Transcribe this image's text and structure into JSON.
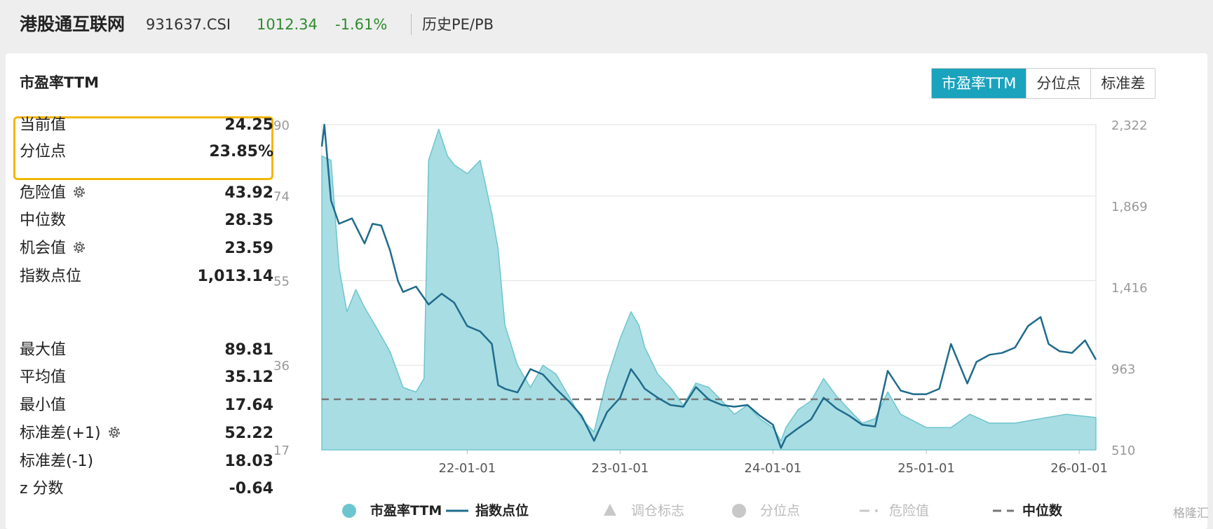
{
  "header": {
    "name": "港股通互联网",
    "code": "931637.CSI",
    "price": "1012.34",
    "change": "-1.61%",
    "history_link": "历史PE/PB"
  },
  "panel": {
    "title": "市盈率TTM",
    "buttons": [
      {
        "label": "市盈率TTM",
        "active": true
      },
      {
        "label": "分位点",
        "active": false
      },
      {
        "label": "标准差",
        "active": false
      }
    ]
  },
  "stats": {
    "current_label": "当前值",
    "current_value": "24.25",
    "percentile_label": "分位点",
    "percentile_value": "23.85%",
    "danger_label": "危险值",
    "danger_value": "43.92",
    "median_label": "中位数",
    "median_value": "28.35",
    "opportunity_label": "机会值",
    "opportunity_value": "23.59",
    "index_label": "指数点位",
    "index_value": "1,013.14",
    "max_label": "最大值",
    "max_value": "89.81",
    "avg_label": "平均值",
    "avg_value": "35.12",
    "min_label": "最小值",
    "min_value": "17.64",
    "std_plus_label": "标准差(+1)",
    "std_plus_value": "52.22",
    "std_minus_label": "标准差(-1)",
    "std_minus_value": "18.03",
    "z_label": "z 分数",
    "z_value": "-0.64"
  },
  "colors": {
    "pe_fill": "#a8dde3",
    "pe_stroke": "#6cc6cf",
    "index_line": "#1f6b8c",
    "median_line": "#777777",
    "active_button": "#1aa3bd",
    "highlight_box": "#f2b705",
    "price_green": "#2e8b2e"
  },
  "chart_data": {
    "type": "area",
    "x_ticks": [
      "22-01-01",
      "23-01-01",
      "24-01-01",
      "25-01-01",
      "26-01-01"
    ],
    "x_range": [
      "2021-01-19",
      "2026-02-10"
    ],
    "y_left": {
      "ticks": [
        "90",
        "74",
        "55",
        "36",
        "17"
      ],
      "range": [
        17,
        90
      ]
    },
    "y_right": {
      "ticks": [
        "2,322",
        "1,869",
        "1,416",
        "963",
        "510"
      ],
      "range": [
        510,
        2322
      ]
    },
    "median": 28.35,
    "series": [
      {
        "name": "市盈率TTM",
        "axis": "left",
        "points": [
          [
            "2021-01-19",
            83
          ],
          [
            "2021-02-10",
            82
          ],
          [
            "2021-03-01",
            58
          ],
          [
            "2021-03-20",
            48
          ],
          [
            "2021-04-10",
            53
          ],
          [
            "2021-05-01",
            49
          ],
          [
            "2021-06-01",
            44
          ],
          [
            "2021-07-01",
            39
          ],
          [
            "2021-08-01",
            31
          ],
          [
            "2021-09-01",
            30
          ],
          [
            "2021-09-20",
            33
          ],
          [
            "2021-10-01",
            82
          ],
          [
            "2021-10-25",
            89
          ],
          [
            "2021-11-15",
            83
          ],
          [
            "2021-12-01",
            81
          ],
          [
            "2022-01-01",
            79
          ],
          [
            "2022-02-01",
            82
          ],
          [
            "2022-03-01",
            70
          ],
          [
            "2022-03-16",
            62
          ],
          [
            "2022-04-01",
            45
          ],
          [
            "2022-05-01",
            36
          ],
          [
            "2022-06-01",
            31
          ],
          [
            "2022-07-01",
            36
          ],
          [
            "2022-08-01",
            34
          ],
          [
            "2022-09-01",
            29
          ],
          [
            "2022-10-01",
            24
          ],
          [
            "2022-10-31",
            21
          ],
          [
            "2022-11-15",
            27
          ],
          [
            "2022-12-01",
            33
          ],
          [
            "2023-01-01",
            42
          ],
          [
            "2023-01-27",
            48
          ],
          [
            "2023-02-15",
            45
          ],
          [
            "2023-03-01",
            40
          ],
          [
            "2023-04-01",
            34
          ],
          [
            "2023-05-01",
            31
          ],
          [
            "2023-06-01",
            27
          ],
          [
            "2023-07-01",
            32
          ],
          [
            "2023-08-01",
            31
          ],
          [
            "2023-09-01",
            28
          ],
          [
            "2023-10-01",
            25
          ],
          [
            "2023-11-01",
            27
          ],
          [
            "2023-12-01",
            24
          ],
          [
            "2024-01-01",
            22
          ],
          [
            "2024-01-20",
            19
          ],
          [
            "2024-02-01",
            22
          ],
          [
            "2024-03-01",
            26
          ],
          [
            "2024-04-01",
            28
          ],
          [
            "2024-05-01",
            33
          ],
          [
            "2024-06-01",
            29
          ],
          [
            "2024-07-01",
            26
          ],
          [
            "2024-08-01",
            23
          ],
          [
            "2024-09-01",
            24
          ],
          [
            "2024-10-01",
            30
          ],
          [
            "2024-11-01",
            25
          ],
          [
            "2025-01-01",
            22
          ],
          [
            "2025-03-01",
            22
          ],
          [
            "2025-04-15",
            25
          ],
          [
            "2025-06-01",
            23
          ],
          [
            "2025-08-01",
            23
          ],
          [
            "2025-10-01",
            24
          ],
          [
            "2025-12-01",
            25
          ],
          [
            "2026-02-10",
            24.25
          ]
        ]
      },
      {
        "name": "指数点位",
        "axis": "right",
        "points": [
          [
            "2021-01-19",
            2200
          ],
          [
            "2021-01-25",
            2322
          ],
          [
            "2021-02-10",
            1900
          ],
          [
            "2021-03-01",
            1770
          ],
          [
            "2021-04-01",
            1800
          ],
          [
            "2021-05-01",
            1660
          ],
          [
            "2021-05-20",
            1770
          ],
          [
            "2021-06-10",
            1760
          ],
          [
            "2021-07-01",
            1620
          ],
          [
            "2021-07-20",
            1450
          ],
          [
            "2021-08-01",
            1390
          ],
          [
            "2021-09-01",
            1420
          ],
          [
            "2021-10-01",
            1320
          ],
          [
            "2021-11-01",
            1380
          ],
          [
            "2021-12-01",
            1330
          ],
          [
            "2022-01-01",
            1200
          ],
          [
            "2022-02-01",
            1170
          ],
          [
            "2022-03-01",
            1100
          ],
          [
            "2022-03-16",
            870
          ],
          [
            "2022-04-01",
            850
          ],
          [
            "2022-05-01",
            830
          ],
          [
            "2022-06-01",
            960
          ],
          [
            "2022-07-01",
            930
          ],
          [
            "2022-08-01",
            850
          ],
          [
            "2022-09-01",
            780
          ],
          [
            "2022-10-01",
            700
          ],
          [
            "2022-10-31",
            560
          ],
          [
            "2022-11-15",
            640
          ],
          [
            "2022-12-01",
            720
          ],
          [
            "2023-01-01",
            800
          ],
          [
            "2023-01-27",
            960
          ],
          [
            "2023-02-15",
            900
          ],
          [
            "2023-03-01",
            850
          ],
          [
            "2023-04-01",
            800
          ],
          [
            "2023-05-01",
            760
          ],
          [
            "2023-06-01",
            750
          ],
          [
            "2023-07-01",
            860
          ],
          [
            "2023-08-01",
            790
          ],
          [
            "2023-09-01",
            760
          ],
          [
            "2023-10-01",
            750
          ],
          [
            "2023-11-01",
            760
          ],
          [
            "2023-12-01",
            700
          ],
          [
            "2024-01-01",
            650
          ],
          [
            "2024-01-20",
            520
          ],
          [
            "2024-02-01",
            580
          ],
          [
            "2024-03-01",
            630
          ],
          [
            "2024-04-01",
            680
          ],
          [
            "2024-05-01",
            800
          ],
          [
            "2024-06-01",
            740
          ],
          [
            "2024-07-01",
            700
          ],
          [
            "2024-08-01",
            650
          ],
          [
            "2024-09-01",
            640
          ],
          [
            "2024-10-01",
            950
          ],
          [
            "2024-11-01",
            840
          ],
          [
            "2024-12-01",
            820
          ],
          [
            "2025-01-01",
            820
          ],
          [
            "2025-02-01",
            850
          ],
          [
            "2025-03-01",
            1100
          ],
          [
            "2025-04-09",
            880
          ],
          [
            "2025-05-01",
            1000
          ],
          [
            "2025-06-01",
            1040
          ],
          [
            "2025-07-01",
            1050
          ],
          [
            "2025-08-01",
            1080
          ],
          [
            "2025-09-01",
            1200
          ],
          [
            "2025-10-01",
            1250
          ],
          [
            "2025-10-20",
            1100
          ],
          [
            "2025-11-15",
            1060
          ],
          [
            "2025-12-15",
            1050
          ],
          [
            "2026-01-15",
            1120
          ],
          [
            "2026-02-10",
            1013.14
          ]
        ]
      }
    ],
    "legend": [
      {
        "label": "市盈率TTM",
        "symbol": "circle-filled",
        "active": true
      },
      {
        "label": "指数点位",
        "symbol": "line",
        "active": true
      },
      {
        "label": "调仓标志",
        "symbol": "triangle",
        "active": false
      },
      {
        "label": "分位点",
        "symbol": "circle",
        "active": false
      },
      {
        "label": "危险值",
        "symbol": "dash-dot",
        "active": false
      },
      {
        "label": "中位数",
        "symbol": "dash",
        "active": true
      }
    ]
  },
  "watermark": "格隆汇"
}
